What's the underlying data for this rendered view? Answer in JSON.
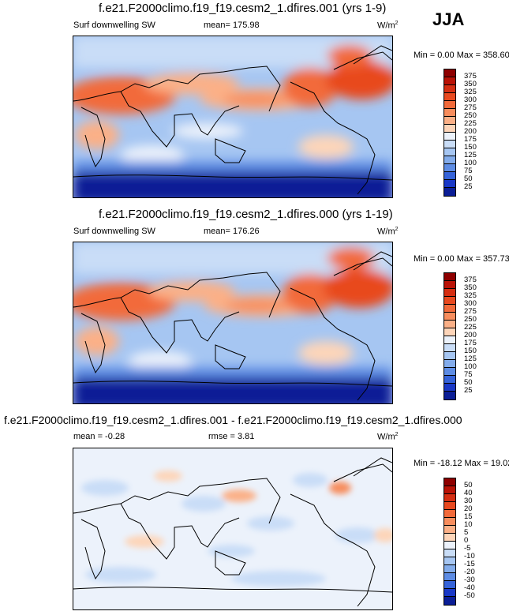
{
  "season": "JJA",
  "panels": [
    {
      "title": "f.e21.F2000climo.f19_f19.cesm2_1.dfires.001 (yrs 1-9)",
      "variable": "Surf downwelling SW",
      "stat1": "mean=  175.98",
      "stat2": "",
      "units_base": "W/m",
      "units_exp": "2",
      "minmax": "Min =    0.00 Max = 358.60",
      "colorbar": {
        "labels": [
          "375",
          "350",
          "325",
          "300",
          "275",
          "250",
          "225",
          "200",
          "175",
          "150",
          "125",
          "100",
          "75",
          "50",
          "25"
        ],
        "colors": [
          "#8e0000",
          "#b91206",
          "#d52e12",
          "#e8491f",
          "#f26a3a",
          "#f78d5d",
          "#fbb087",
          "#fdd5b9",
          "#ecf2fb",
          "#c9ddf7",
          "#a6c6f2",
          "#83aceb",
          "#5d8ce4",
          "#3563d9",
          "#1938c6",
          "#0b1e96"
        ]
      }
    },
    {
      "title": "f.e21.F2000climo.f19_f19.cesm2_1.dfires.000 (yrs 1-19)",
      "variable": "Surf downwelling SW",
      "stat1": "mean=  176.26",
      "stat2": "",
      "units_base": "W/m",
      "units_exp": "2",
      "minmax": "Min =    0.00 Max = 357.73",
      "colorbar": {
        "labels": [
          "375",
          "350",
          "325",
          "300",
          "275",
          "250",
          "225",
          "200",
          "175",
          "150",
          "125",
          "100",
          "75",
          "50",
          "25"
        ],
        "colors": [
          "#8e0000",
          "#b91206",
          "#d52e12",
          "#e8491f",
          "#f26a3a",
          "#f78d5d",
          "#fbb087",
          "#fdd5b9",
          "#ecf2fb",
          "#c9ddf7",
          "#a6c6f2",
          "#83aceb",
          "#5d8ce4",
          "#3563d9",
          "#1938c6",
          "#0b1e96"
        ]
      }
    },
    {
      "title": "f.e21.F2000climo.f19_f19.cesm2_1.dfires.001 - f.e21.F2000climo.f19_f19.cesm2_1.dfires.000",
      "variable": "",
      "stat1": "mean =   -0.28",
      "stat2": "rmse =    3.81",
      "units_base": "W/m",
      "units_exp": "2",
      "minmax": "Min = -18.12 Max =  19.02",
      "colorbar": {
        "labels": [
          "50",
          "40",
          "30",
          "20",
          "15",
          "10",
          "5",
          "0",
          "-5",
          "-10",
          "-15",
          "-20",
          "-30",
          "-40",
          "-50"
        ],
        "colors": [
          "#8e0000",
          "#b91206",
          "#d52e12",
          "#e8491f",
          "#f26a3a",
          "#f78d5d",
          "#fbb087",
          "#fdd5b9",
          "#ecf2fb",
          "#c9ddf7",
          "#a6c6f2",
          "#83aceb",
          "#5d8ce4",
          "#3563d9",
          "#1938c6",
          "#0b1e96"
        ]
      }
    }
  ],
  "chart_data": [
    {
      "type": "heatmap",
      "title": "f.e21.F2000climo.f19_f19.cesm2_1.dfires.001 (yrs 1-9)",
      "subtitle": "Surf downwelling SW",
      "mean": 175.98,
      "min": 0.0,
      "max": 358.6,
      "units": "W/m2",
      "levels": [
        25,
        50,
        75,
        100,
        125,
        150,
        175,
        200,
        225,
        250,
        275,
        300,
        325,
        350,
        375
      ]
    },
    {
      "type": "heatmap",
      "title": "f.e21.F2000climo.f19_f19.cesm2_1.dfires.000 (yrs 1-19)",
      "subtitle": "Surf downwelling SW",
      "mean": 176.26,
      "min": 0.0,
      "max": 357.73,
      "units": "W/m2",
      "levels": [
        25,
        50,
        75,
        100,
        125,
        150,
        175,
        200,
        225,
        250,
        275,
        300,
        325,
        350,
        375
      ]
    },
    {
      "type": "heatmap",
      "title": "f.e21.F2000climo.f19_f19.cesm2_1.dfires.001 - f.e21.F2000climo.f19_f19.cesm2_1.dfires.000",
      "mean": -0.28,
      "rmse": 3.81,
      "min": -18.12,
      "max": 19.02,
      "units": "W/m2",
      "levels": [
        -50,
        -40,
        -30,
        -20,
        -15,
        -10,
        -5,
        0,
        5,
        10,
        15,
        20,
        30,
        40,
        50
      ]
    }
  ]
}
